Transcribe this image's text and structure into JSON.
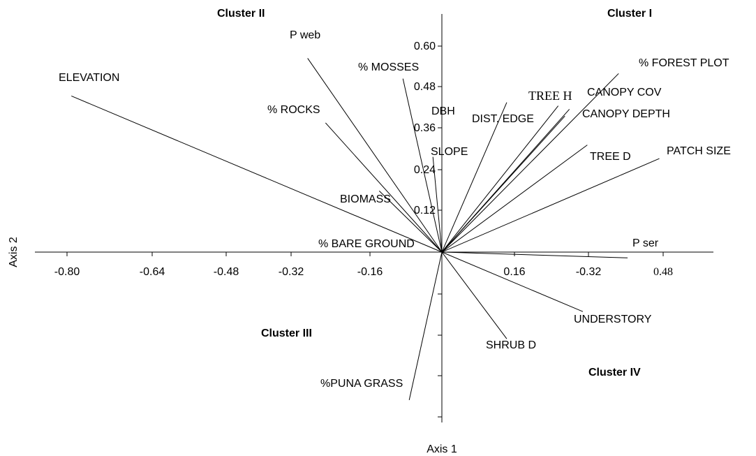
{
  "chart_data": {
    "type": "biplot",
    "xlabel": "Axis 1",
    "ylabel": "Axis 2",
    "x_tick_labels": [
      "-0.80",
      "-0.64",
      "-0.48",
      "-0.32",
      "-0.16",
      "0.16",
      "-0.32",
      "0.48"
    ],
    "y_tick_labels": [
      "0.60",
      "0.48",
      "0.36",
      "0.24",
      "0.12"
    ],
    "cluster_labels": [
      "Cluster I",
      "Cluster II",
      "Cluster III",
      "Cluster IV"
    ],
    "vectors": [
      {
        "name": "ELEVATION",
        "x": -0.828,
        "y": 0.459
      },
      {
        "name": "P web",
        "x": -0.3,
        "y": 0.57
      },
      {
        "name": "% MOSSES",
        "x": -0.087,
        "y": 0.51
      },
      {
        "name": "% ROCKS",
        "x": -0.26,
        "y": 0.38
      },
      {
        "name": "DBH",
        "x": 0.0,
        "y": 0.375
      },
      {
        "name": "SLOPE",
        "x": -0.02,
        "y": 0.28
      },
      {
        "name": "BIOMASS",
        "x": -0.14,
        "y": 0.18
      },
      {
        "name": "% BARE GROUND",
        "x": -0.135,
        "y": 0.0
      },
      {
        "name": "DIST. EDGE",
        "x": 0.145,
        "y": 0.44
      },
      {
        "name": "TREE H",
        "x": 0.26,
        "y": 0.43
      },
      {
        "name": "CANOPY COV",
        "x": 0.285,
        "y": 0.42
      },
      {
        "name": "CANOPY DEPTH",
        "x": 0.275,
        "y": 0.4
      },
      {
        "name": "% FOREST PLOT",
        "x": 0.395,
        "y": 0.525
      },
      {
        "name": "TREE D",
        "x": 0.325,
        "y": 0.315
      },
      {
        "name": "PATCH SIZE",
        "x": 0.486,
        "y": 0.275
      },
      {
        "name": "P ser",
        "x": 0.415,
        "y": -0.017
      },
      {
        "name": "UNDERSTORY",
        "x": 0.315,
        "y": -0.175
      },
      {
        "name": "SHRUB D",
        "x": 0.145,
        "y": -0.255
      },
      {
        "name": "%PUNA GRASS",
        "x": -0.073,
        "y": -0.435
      }
    ]
  }
}
